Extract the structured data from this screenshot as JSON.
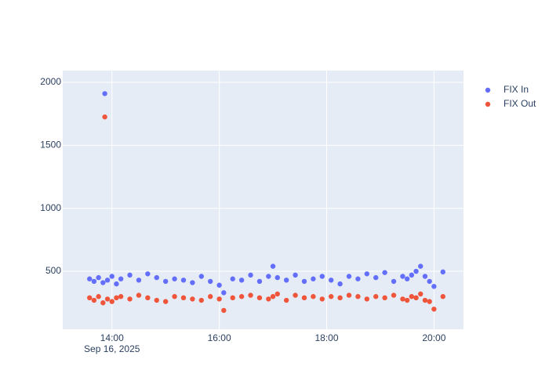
{
  "chart_data": {
    "type": "scatter",
    "x": [
      "2025-09-16 13:35",
      "2025-09-16 13:40",
      "2025-09-16 13:45",
      "2025-09-16 13:50",
      "2025-09-16 13:52",
      "2025-09-16 13:55",
      "2025-09-16 14:00",
      "2025-09-16 14:05",
      "2025-09-16 14:10",
      "2025-09-16 14:20",
      "2025-09-16 14:30",
      "2025-09-16 14:40",
      "2025-09-16 14:50",
      "2025-09-16 15:00",
      "2025-09-16 15:10",
      "2025-09-16 15:20",
      "2025-09-16 15:30",
      "2025-09-16 15:40",
      "2025-09-16 15:50",
      "2025-09-16 16:00",
      "2025-09-16 16:05",
      "2025-09-16 16:15",
      "2025-09-16 16:25",
      "2025-09-16 16:35",
      "2025-09-16 16:45",
      "2025-09-16 16:55",
      "2025-09-16 17:00",
      "2025-09-16 17:05",
      "2025-09-16 17:15",
      "2025-09-16 17:25",
      "2025-09-16 17:35",
      "2025-09-16 17:45",
      "2025-09-16 17:55",
      "2025-09-16 18:05",
      "2025-09-16 18:15",
      "2025-09-16 18:25",
      "2025-09-16 18:35",
      "2025-09-16 18:45",
      "2025-09-16 18:55",
      "2025-09-16 19:05",
      "2025-09-16 19:15",
      "2025-09-16 19:25",
      "2025-09-16 19:30",
      "2025-09-16 19:35",
      "2025-09-16 19:40",
      "2025-09-16 19:45",
      "2025-09-16 19:50",
      "2025-09-16 19:55",
      "2025-09-16 20:00",
      "2025-09-16 20:10"
    ],
    "series": [
      {
        "name": "FIX In",
        "color": "#636efa",
        "values": [
          440,
          420,
          450,
          410,
          1910,
          430,
          460,
          400,
          440,
          470,
          430,
          480,
          450,
          420,
          440,
          430,
          410,
          460,
          420,
          390,
          330,
          440,
          430,
          470,
          420,
          460,
          540,
          450,
          430,
          470,
          420,
          440,
          460,
          430,
          400,
          460,
          440,
          480,
          450,
          490,
          420,
          460,
          440,
          470,
          500,
          540,
          460,
          420,
          380,
          495
        ]
      },
      {
        "name": "FIX Out",
        "color": "#EF553B",
        "values": [
          290,
          270,
          300,
          250,
          1725,
          280,
          260,
          290,
          300,
          280,
          310,
          290,
          270,
          260,
          300,
          290,
          280,
          270,
          300,
          280,
          190,
          290,
          300,
          310,
          290,
          280,
          300,
          320,
          270,
          310,
          290,
          300,
          280,
          300,
          290,
          310,
          300,
          280,
          300,
          290,
          310,
          280,
          270,
          300,
          290,
          320,
          270,
          260,
          200,
          300
        ]
      }
    ],
    "xlim": [
      "2025-09-16 13:05",
      "2025-09-16 20:33"
    ],
    "xticks": [
      {
        "value": "2025-09-16 14:00",
        "label": "14:00"
      },
      {
        "value": "2025-09-16 16:00",
        "label": "16:00"
      },
      {
        "value": "2025-09-16 18:00",
        "label": "18:00"
      },
      {
        "value": "2025-09-16 20:00",
        "label": "20:00"
      }
    ],
    "x_date_label": "Sep 16, 2025",
    "ylim": [
      40,
      2093
    ],
    "yticks": [
      500,
      1000,
      1500,
      2000
    ],
    "grid": true,
    "legend": "right"
  }
}
